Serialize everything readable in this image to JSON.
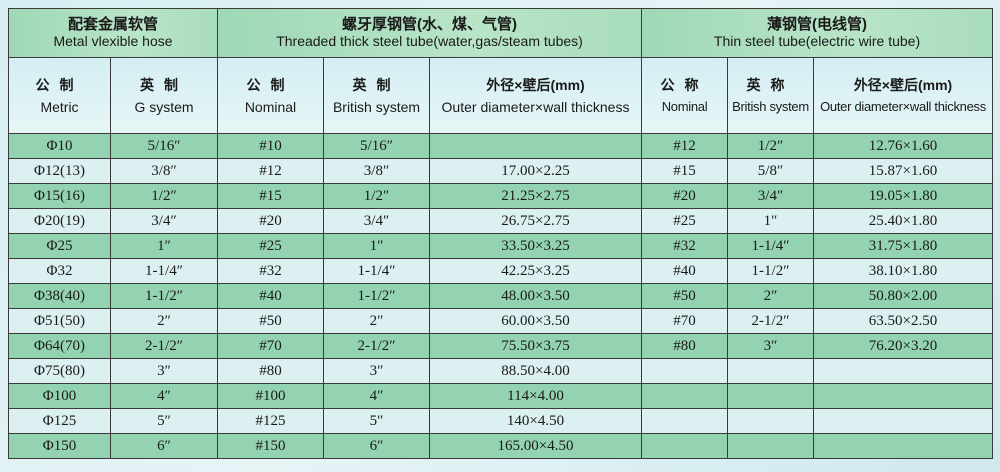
{
  "groups": [
    {
      "cn": "配套金属软管",
      "en": "Metal vlexible hose"
    },
    {
      "cn": "螺牙厚钢管(水、煤、气管)",
      "en": "Threaded thick steel tube(water,gas/steam tubes)"
    },
    {
      "cn": "薄钢管(电线管)",
      "en": "Thin steel tube(electric wire tube)"
    }
  ],
  "columns": [
    {
      "cn": "公制",
      "en": "Metric"
    },
    {
      "cn": "英制",
      "en": "G system"
    },
    {
      "cn": "公制",
      "en": "Nominal"
    },
    {
      "cn": "英制",
      "en": "British system"
    },
    {
      "cn": "外径×壁后(mm)",
      "en": "Outer diameter×wall thickness"
    },
    {
      "cn": "公称",
      "en": "Nominal"
    },
    {
      "cn": "英称",
      "en": "British system"
    },
    {
      "cn": "外径×壁后(mm)",
      "en": "Outer diameter×wall thickness"
    }
  ],
  "rows": [
    [
      "Φ10",
      "5/16″",
      "#10",
      "5/16″",
      "",
      "#12",
      "1/2″",
      "12.76×1.60"
    ],
    [
      "Φ12(13)",
      "3/8″",
      "#12",
      "3/8″",
      "17.00×2.25",
      "#15",
      "5/8″",
      "15.87×1.60"
    ],
    [
      "Φ15(16)",
      "1/2″",
      "#15",
      "1/2″",
      "21.25×2.75",
      "#20",
      "3/4″",
      "19.05×1.80"
    ],
    [
      "Φ20(19)",
      "3/4″",
      "#20",
      "3/4″",
      "26.75×2.75",
      "#25",
      "1″",
      "25.40×1.80"
    ],
    [
      "Φ25",
      "1″",
      "#25",
      "1″",
      "33.50×3.25",
      "#32",
      "1-1/4″",
      "31.75×1.80"
    ],
    [
      "Φ32",
      "1-1/4″",
      "#32",
      "1-1/4″",
      "42.25×3.25",
      "#40",
      "1-1/2″",
      "38.10×1.80"
    ],
    [
      "Φ38(40)",
      "1-1/2″",
      "#40",
      "1-1/2″",
      "48.00×3.50",
      "#50",
      "2″",
      "50.80×2.00"
    ],
    [
      "Φ51(50)",
      "2″",
      "#50",
      "2″",
      "60.00×3.50",
      "#70",
      "2-1/2″",
      "63.50×2.50"
    ],
    [
      "Φ64(70)",
      "2-1/2″",
      "#70",
      "2-1/2″",
      "75.50×3.75",
      "#80",
      "3″",
      "76.20×3.20"
    ],
    [
      "Φ75(80)",
      "3″",
      "#80",
      "3″",
      "88.50×4.00",
      "",
      "",
      ""
    ],
    [
      "Φ100",
      "4″",
      "#100",
      "4″",
      "114×4.00",
      "",
      "",
      ""
    ],
    [
      "Φ125",
      "5″",
      "#125",
      "5″",
      "140×4.50",
      "",
      "",
      ""
    ],
    [
      "Φ150",
      "6″",
      "#150",
      "6″",
      "165.00×4.50",
      "",
      "",
      ""
    ]
  ],
  "colors": {
    "green_row": "#93d3b1",
    "blue_row": "#dcf0f2",
    "header": "#a8dcbc",
    "border": "#3a3a3a"
  }
}
